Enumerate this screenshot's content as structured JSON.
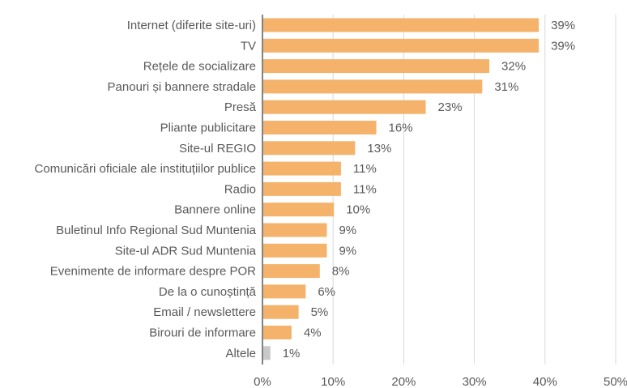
{
  "chart_data": {
    "type": "bar",
    "orientation": "horizontal",
    "categories": [
      "Internet (diferite site-uri)",
      "TV",
      "Rețele de socializare",
      "Panouri și bannere stradale",
      "Presă",
      "Pliante publicitare",
      "Site-ul REGIO",
      "Comunicări oficiale ale instituțiilor publice",
      "Radio",
      "Bannere online",
      "Buletinul Info Regional Sud Muntenia",
      "Site-ul ADR Sud Muntenia",
      "Evenimente de informare despre POR",
      "De la o cunoștință",
      "Email / newslettere",
      "Birouri de informare",
      "Altele"
    ],
    "values": [
      39,
      39,
      32,
      31,
      23,
      16,
      13,
      11,
      11,
      10,
      9,
      9,
      8,
      6,
      5,
      4,
      1
    ],
    "value_labels": [
      "39%",
      "39%",
      "32%",
      "31%",
      "23%",
      "16%",
      "13%",
      "11%",
      "11%",
      "10%",
      "9%",
      "9%",
      "8%",
      "6%",
      "5%",
      "4%",
      "1%"
    ],
    "bar_colors": [
      "#F4B26B",
      "#F4B26B",
      "#F4B26B",
      "#F4B26B",
      "#F4B26B",
      "#F4B26B",
      "#F4B26B",
      "#F4B26B",
      "#F4B26B",
      "#F4B26B",
      "#F4B26B",
      "#F4B26B",
      "#F4B26B",
      "#F4B26B",
      "#F4B26B",
      "#F4B26B",
      "#C9C9C9"
    ],
    "xlim": [
      0,
      50
    ],
    "xticks": [
      0,
      10,
      20,
      30,
      40,
      50
    ],
    "xtick_labels": [
      "0%",
      "10%",
      "20%",
      "30%",
      "40%",
      "50%"
    ],
    "grid": true,
    "gridline_color": "#D9D9D9",
    "axis_color": "#404040",
    "text_color": "#595959",
    "title": "",
    "xlabel": "",
    "ylabel": ""
  }
}
